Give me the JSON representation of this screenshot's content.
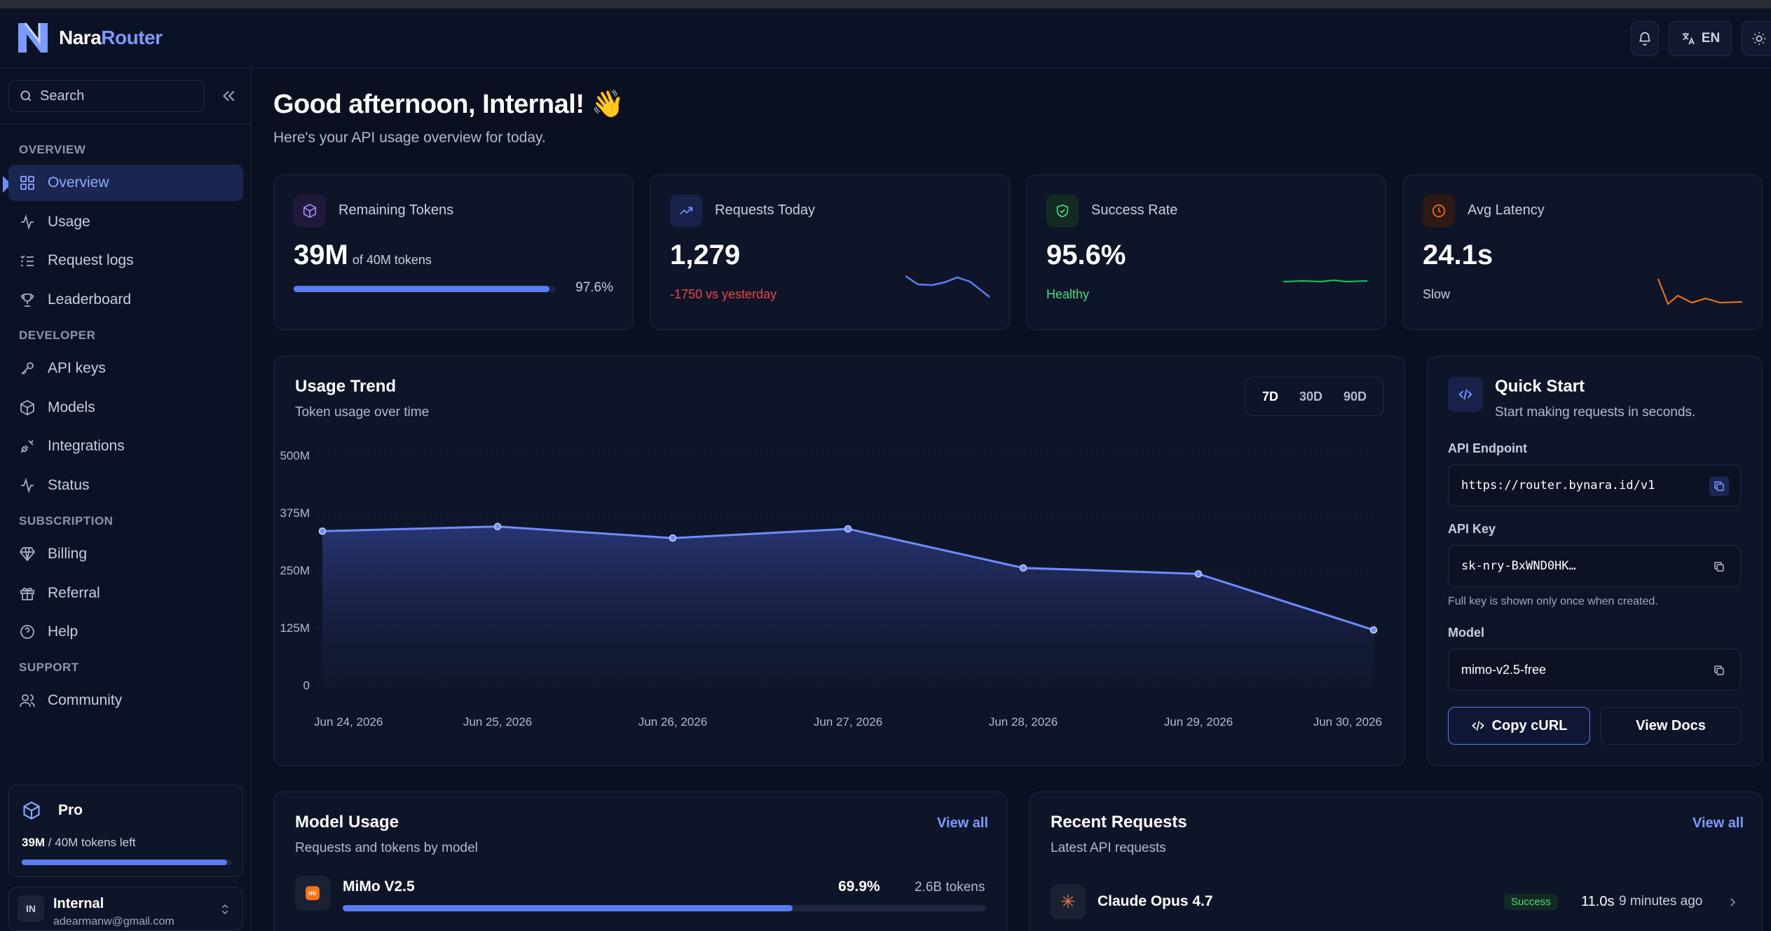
{
  "brand": {
    "name_a": "Nara",
    "name_b": "Router"
  },
  "header": {
    "language": "EN"
  },
  "sidebar": {
    "search_placeholder": "Search",
    "sections": {
      "overview": "OVERVIEW",
      "developer": "DEVELOPER",
      "subscription": "SUBSCRIPTION",
      "support": "SUPPORT"
    },
    "items": {
      "overview": "Overview",
      "usage": "Usage",
      "request_logs": "Request logs",
      "leaderboard": "Leaderboard",
      "api_keys": "API keys",
      "models": "Models",
      "integrations": "Integrations",
      "status": "Status",
      "billing": "Billing",
      "referral": "Referral",
      "help": "Help",
      "community": "Community"
    },
    "plan": {
      "name": "Pro",
      "used": "39M",
      "rest": " / 40M tokens left",
      "fraction": 0.975
    },
    "user": {
      "initials": "IN",
      "name": "Internal",
      "email": "adearmanw@gmail.com"
    }
  },
  "greeting": {
    "title": "Good afternoon, Internal! 👋",
    "subtitle": "Here's your API usage overview for today."
  },
  "stats": {
    "remaining": {
      "label": "Remaining Tokens",
      "value": "39M",
      "unit": "of 40M tokens",
      "percent": "97.6%",
      "fraction": 0.976
    },
    "requests": {
      "label": "Requests Today",
      "value": "1,279",
      "sub": "-1750 vs yesterday",
      "sub_color": "#ef4444"
    },
    "success": {
      "label": "Success Rate",
      "value": "95.6%",
      "sub": "Healthy",
      "sub_color": "#4ade80"
    },
    "latency": {
      "label": "Avg Latency",
      "value": "24.1s",
      "sub": "Slow",
      "sub_color": "#c9cedd"
    }
  },
  "usage_trend": {
    "title": "Usage Trend",
    "subtitle": "Token usage over time",
    "ranges": [
      "7D",
      "30D",
      "90D"
    ],
    "selected_range": "7D"
  },
  "chart_data": {
    "type": "area",
    "x": [
      "Jun 24, 2026",
      "Jun 25, 2026",
      "Jun 26, 2026",
      "Jun 27, 2026",
      "Jun 28, 2026",
      "Jun 29, 2026",
      "Jun 30, 2026"
    ],
    "y": [
      335,
      345,
      320,
      340,
      255,
      242,
      120
    ],
    "y_unit": "M",
    "yticks": [
      "0",
      "125M",
      "250M",
      "375M",
      "500M"
    ],
    "ylim": [
      0,
      500
    ],
    "grid": true,
    "color": "#6f8cff"
  },
  "quick_start": {
    "title": "Quick Start",
    "subtitle": "Start making requests in seconds.",
    "endpoint_label": "API Endpoint",
    "endpoint": "https://router.bynara.id/v1",
    "key_label": "API Key",
    "key": "sk-nry-BxWND0HK…",
    "key_note": "Full key is shown only once when created.",
    "model_label": "Model",
    "model": "mimo-v2.5-free",
    "copy_curl": "Copy cURL",
    "view_docs": "View Docs"
  },
  "model_usage": {
    "title": "Model Usage",
    "subtitle": "Requests and tokens by model",
    "view_all": "View all",
    "rows": [
      {
        "name": "MiMo V2.5",
        "percent": "69.9%",
        "tokens": "2.6B tokens",
        "fraction": 0.699
      }
    ]
  },
  "recent_requests": {
    "title": "Recent Requests",
    "subtitle": "Latest API requests",
    "view_all": "View all",
    "rows": [
      {
        "model": "Claude Opus 4.7",
        "status": "Success",
        "latency": "11.0s",
        "time": "9 minutes ago"
      }
    ]
  }
}
